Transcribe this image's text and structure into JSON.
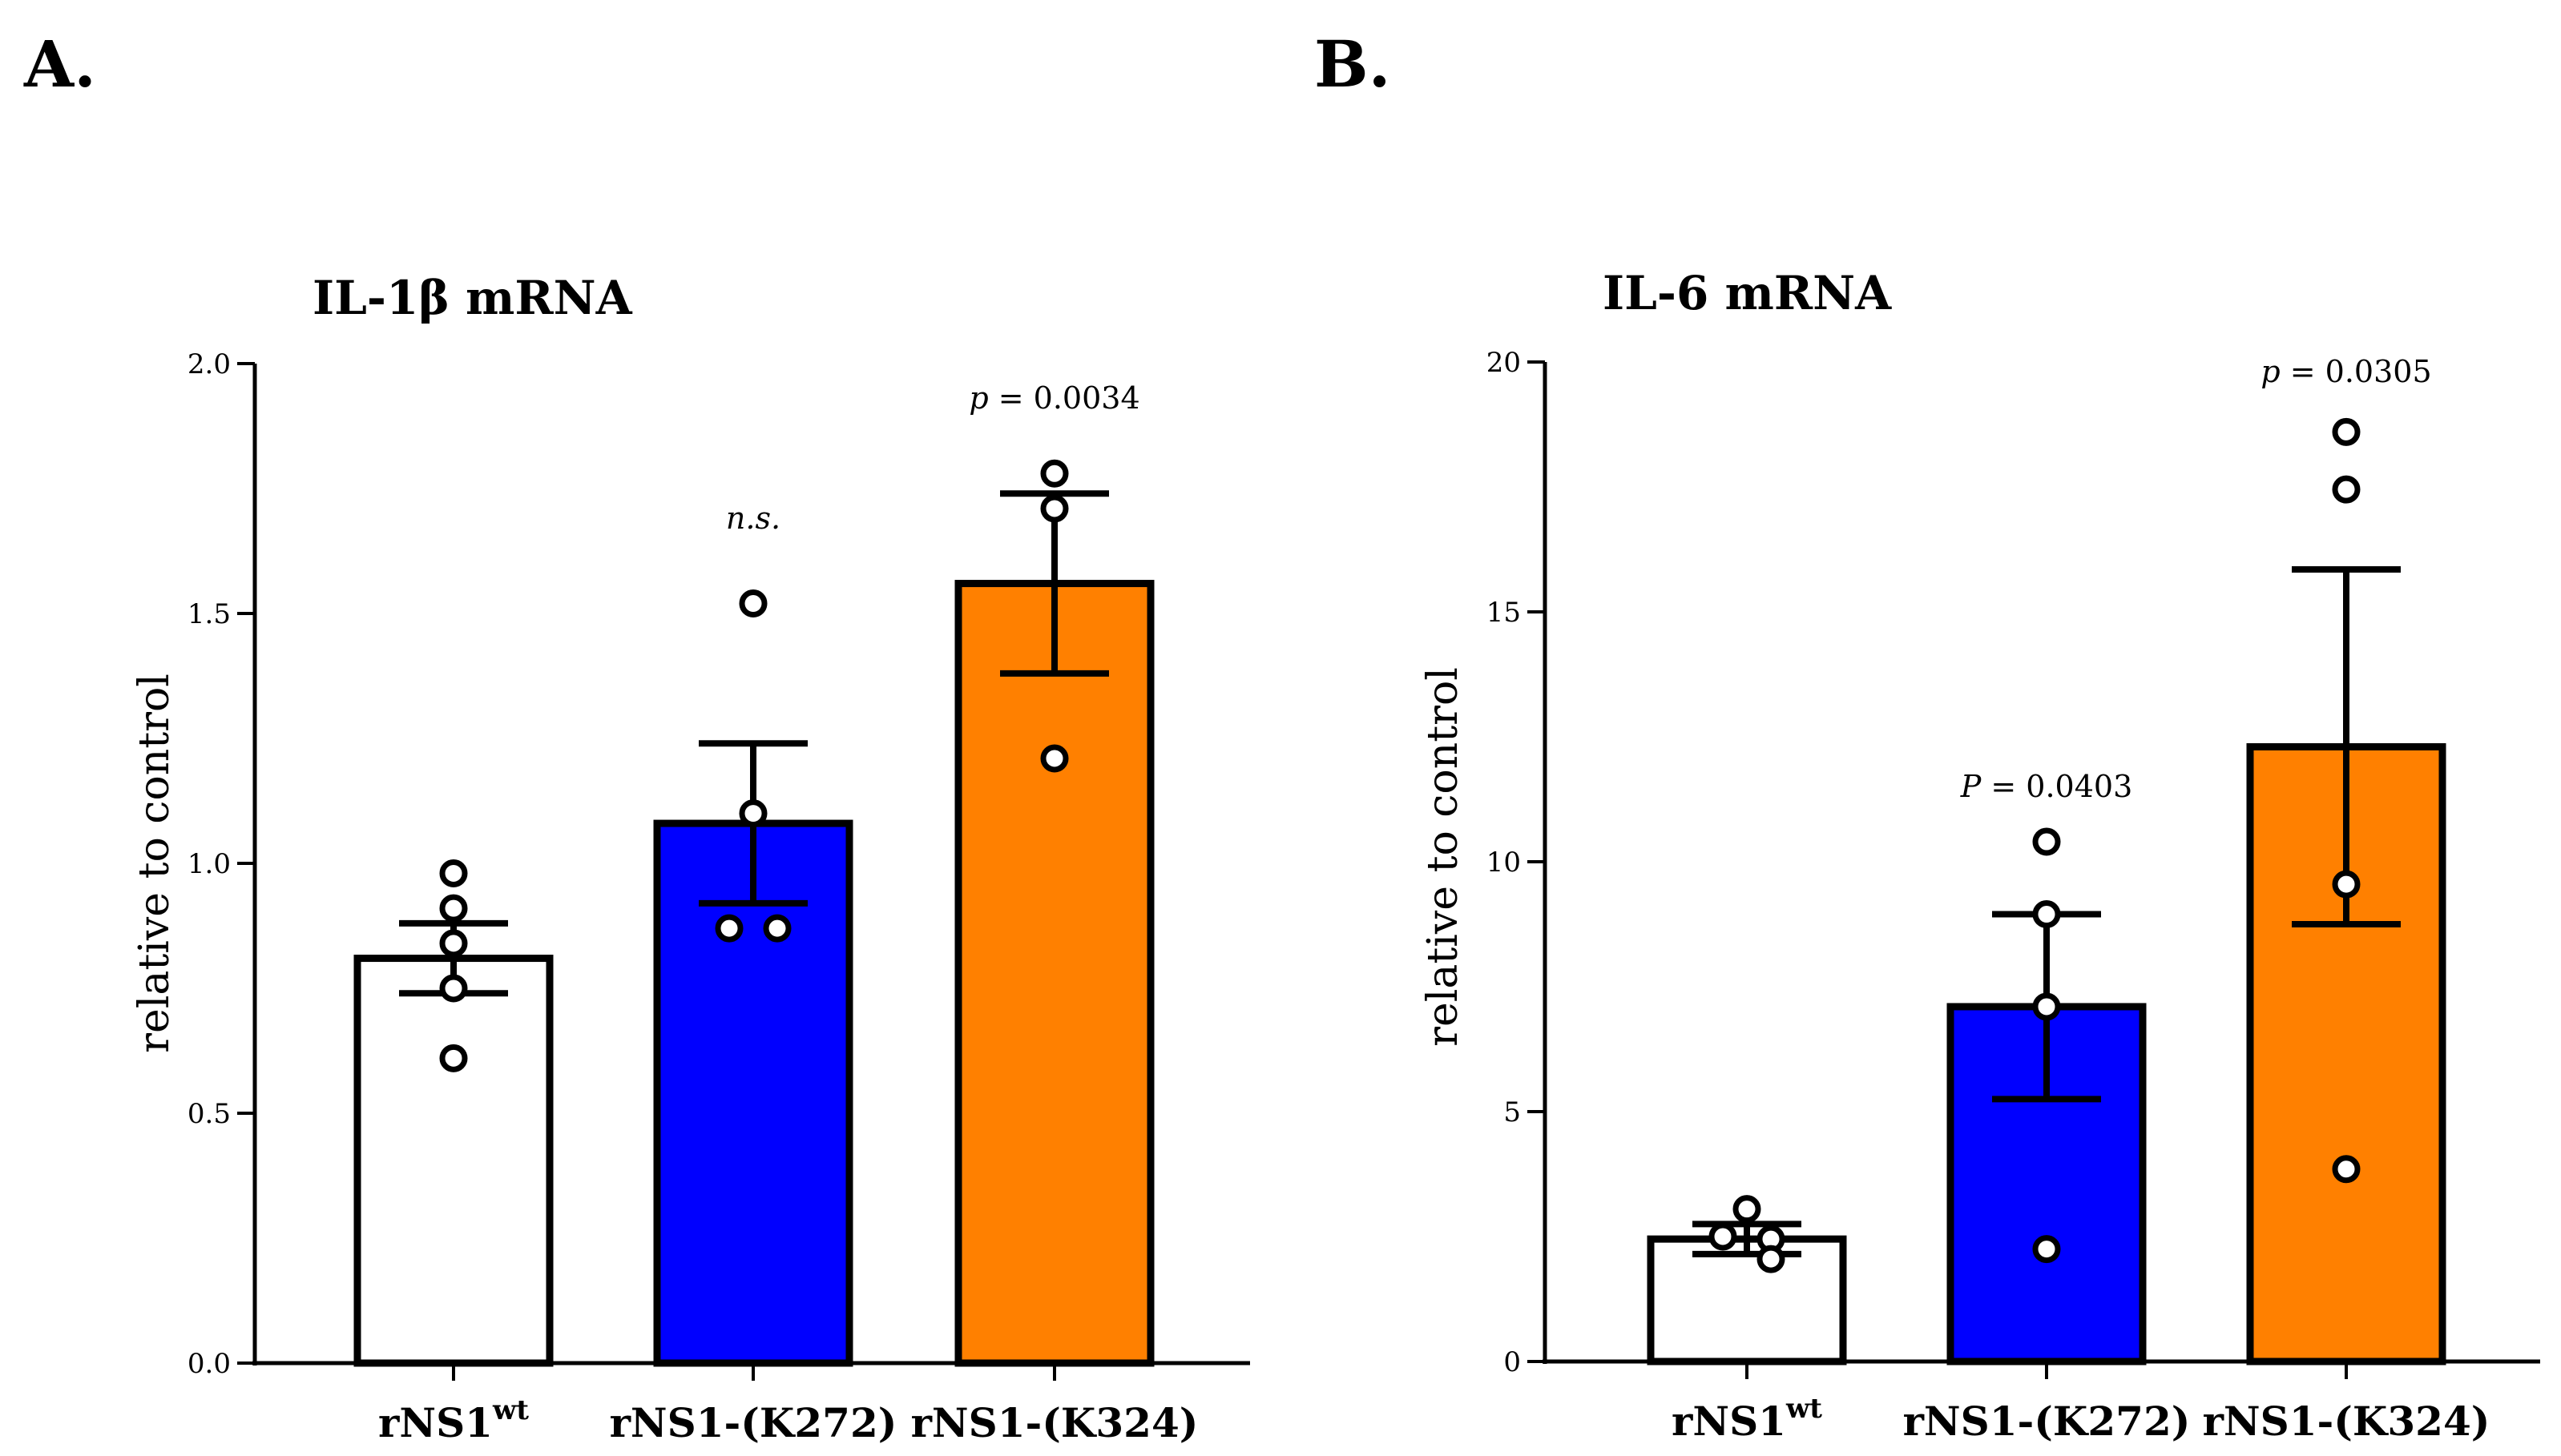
{
  "chart_data": [
    {
      "panel_label": "A.",
      "type": "bar",
      "title": "IL-1β mRNA",
      "ylabel": "relative to control",
      "ylim": [
        0,
        2.0
      ],
      "yticks": [
        0,
        0.5,
        1.0,
        1.5,
        2.0
      ],
      "ytick_labels": [
        "0.0",
        "0.5",
        "1.0",
        "1.5",
        "2.0"
      ],
      "categories": [
        "rNS1wt",
        "rNS1-(K272)",
        "rNS1-(K324)"
      ],
      "category_labels": [
        {
          "base": "rNS1",
          "sup": "wt"
        },
        {
          "base": "rNS1-(K272)",
          "sup": ""
        },
        {
          "base": "rNS1-(K324)",
          "sup": ""
        }
      ],
      "values": [
        0.81,
        1.08,
        1.56
      ],
      "errors": [
        0.07,
        0.16,
        0.18
      ],
      "colors": [
        "#ffffff",
        "#0000ff",
        "#ff8000"
      ],
      "points": [
        [
          0.98,
          0.91,
          0.84,
          0.75,
          0.61
        ],
        [
          1.52,
          1.1,
          0.87,
          0.87
        ],
        [
          1.78,
          1.71,
          1.21
        ]
      ],
      "annotations": [
        {
          "category": 1,
          "prefix": "",
          "text": "n.s.",
          "italic": true,
          "y": 1.67
        },
        {
          "category": 2,
          "prefix": "p",
          "text": " = 0.0034",
          "italic": false,
          "y": 1.91
        }
      ]
    },
    {
      "panel_label": "B.",
      "type": "bar",
      "title": "IL-6 mRNA",
      "ylabel": "relative to control",
      "ylim": [
        0,
        20
      ],
      "yticks": [
        0,
        5,
        10,
        15,
        20
      ],
      "ytick_labels": [
        "0",
        "5",
        "10",
        "15",
        "20"
      ],
      "categories": [
        "rNS1wt",
        "rNS1-(K272)",
        "rNS1-(K324)"
      ],
      "category_labels": [
        {
          "base": "rNS1",
          "sup": "wt"
        },
        {
          "base": "rNS1-(K272)",
          "sup": ""
        },
        {
          "base": "rNS1-(K324)",
          "sup": ""
        }
      ],
      "values": [
        2.45,
        7.1,
        12.3
      ],
      "errors": [
        0.3,
        1.85,
        3.55
      ],
      "colors": [
        "#ffffff",
        "#0000ff",
        "#ff8000"
      ],
      "points": [
        [
          3.05,
          2.5,
          2.45,
          2.05
        ],
        [
          10.4,
          8.95,
          7.1,
          2.25
        ],
        [
          18.6,
          17.45,
          9.55,
          3.85
        ]
      ],
      "annotations": [
        {
          "category": 1,
          "prefix": "P",
          "text": " = 0.0403",
          "italic": false,
          "y": 11.3
        },
        {
          "category": 2,
          "prefix": "p",
          "text": " = 0.0305",
          "italic": false,
          "y": 19.6
        }
      ]
    }
  ]
}
